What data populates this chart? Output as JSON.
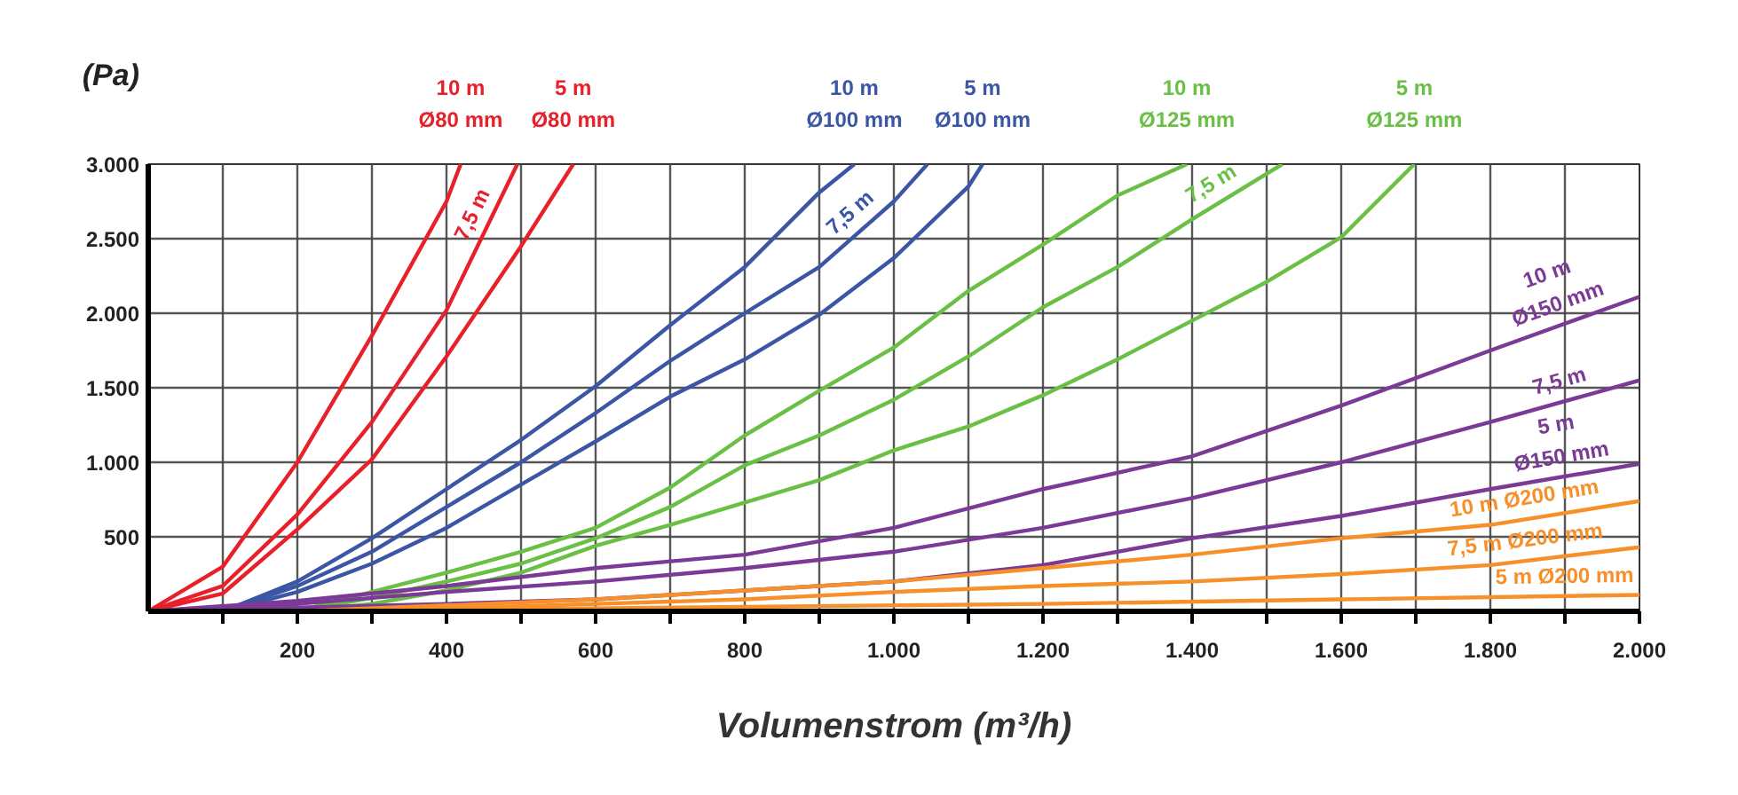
{
  "chart_data": {
    "type": "line",
    "xlabel": "Volumenstrom (m³/h)",
    "ylabel": "(Pa)",
    "xlim": [
      0,
      2000
    ],
    "ylim": [
      0,
      3000
    ],
    "xticks": [
      {
        "value": 100,
        "label": null
      },
      200,
      {
        "value": 300,
        "label": null
      },
      400,
      {
        "value": 500,
        "label": null
      },
      600,
      {
        "value": 700,
        "label": null
      },
      800,
      {
        "value": 900,
        "label": null
      },
      {
        "value": 1000,
        "label": "1.000"
      },
      {
        "value": 1100,
        "label": null
      },
      {
        "value": 1200,
        "label": "1.200"
      },
      {
        "value": 1300,
        "label": null
      },
      {
        "value": 1400,
        "label": "1.400"
      },
      {
        "value": 1500,
        "label": null
      },
      {
        "value": 1600,
        "label": "1.600"
      },
      {
        "value": 1700,
        "label": null
      },
      {
        "value": 1800,
        "label": "1.800"
      },
      {
        "value": 1900,
        "label": null
      },
      {
        "value": 2000,
        "label": "2.000"
      }
    ],
    "yticks": [
      500,
      {
        "value": 1000,
        "label": "1.000"
      },
      {
        "value": 1500,
        "label": "1.500"
      },
      {
        "value": 2000,
        "label": "2.000"
      },
      {
        "value": 2500,
        "label": "2.500"
      },
      {
        "value": 3000,
        "label": "3.000"
      }
    ],
    "grid": true,
    "marker": "none",
    "line_style": "solid",
    "series": [
      {
        "color": "#e8202a",
        "x": [
          0,
          100,
          200,
          300,
          400,
          419
        ],
        "values": [
          0,
          300,
          1000,
          1850,
          2750,
          3000
        ]
      },
      {
        "color": "#e8202a",
        "x": [
          0,
          100,
          200,
          300,
          400,
          495
        ],
        "values": [
          0,
          170,
          650,
          1270,
          2020,
          3000
        ]
      },
      {
        "color": "#e8202a",
        "x": [
          0,
          100,
          200,
          300,
          400,
          500,
          570
        ],
        "values": [
          0,
          120,
          550,
          1020,
          1710,
          2450,
          3000
        ]
      },
      {
        "color": "#3a56a5",
        "x": [
          100,
          200,
          300,
          400,
          500,
          600,
          700,
          800,
          900,
          947
        ],
        "values": [
          0,
          200,
          490,
          820,
          1150,
          1510,
          1920,
          2310,
          2810,
          3000
        ]
      },
      {
        "color": "#3a56a5",
        "x": [
          100,
          200,
          300,
          400,
          500,
          600,
          700,
          800,
          900,
          1000,
          1045
        ],
        "values": [
          0,
          170,
          400,
          700,
          1000,
          1330,
          1680,
          2000,
          2310,
          2750,
          3000
        ]
      },
      {
        "color": "#3a56a5",
        "x": [
          100,
          200,
          300,
          400,
          500,
          600,
          700,
          800,
          900,
          1000,
          1100,
          1119
        ],
        "values": [
          0,
          130,
          320,
          560,
          850,
          1140,
          1440,
          1690,
          1990,
          2370,
          2850,
          3000
        ]
      },
      {
        "color": "#6abf45",
        "x": [
          200,
          300,
          400,
          500,
          600,
          700,
          800,
          900,
          1000,
          1100,
          1200,
          1300,
          1393
        ],
        "values": [
          0,
          130,
          260,
          400,
          560,
          830,
          1180,
          1480,
          1770,
          2150,
          2460,
          2790,
          3000
        ]
      },
      {
        "color": "#6abf45",
        "x": [
          200,
          300,
          400,
          500,
          600,
          700,
          800,
          900,
          1000,
          1100,
          1200,
          1300,
          1400,
          1521
        ],
        "values": [
          0,
          90,
          200,
          320,
          490,
          700,
          980,
          1180,
          1420,
          1710,
          2040,
          2310,
          2630,
          3000
        ]
      },
      {
        "color": "#6abf45",
        "x": [
          200,
          300,
          400,
          500,
          600,
          700,
          800,
          900,
          1000,
          1100,
          1200,
          1300,
          1400,
          1500,
          1600,
          1698
        ],
        "values": [
          0,
          50,
          140,
          260,
          440,
          580,
          730,
          880,
          1080,
          1240,
          1450,
          1690,
          1950,
          2210,
          2510,
          3000
        ]
      },
      {
        "color": "#7a3a96",
        "x": [
          0,
          200,
          400,
          600,
          800,
          1000,
          1200,
          1400,
          1600,
          1800,
          2000
        ],
        "values": [
          0,
          70,
          170,
          290,
          380,
          560,
          820,
          1040,
          1380,
          1750,
          2110
        ]
      },
      {
        "color": "#7a3a96",
        "x": [
          0,
          200,
          400,
          600,
          800,
          1000,
          1200,
          1400,
          1600,
          1800,
          2000
        ],
        "values": [
          0,
          50,
          130,
          200,
          290,
          400,
          560,
          760,
          1000,
          1270,
          1550
        ]
      },
      {
        "color": "#7a3a96",
        "x": [
          0,
          400,
          600,
          800,
          1000,
          1200,
          1400,
          1600,
          1800,
          2000
        ],
        "values": [
          0,
          50,
          80,
          140,
          200,
          310,
          490,
          640,
          820,
          990
        ]
      },
      {
        "color": "#f7902a",
        "x": [
          200,
          400,
          600,
          800,
          1000,
          1200,
          1400,
          1600,
          1800,
          2000
        ],
        "values": [
          0,
          40,
          80,
          140,
          200,
          290,
          380,
          490,
          580,
          740
        ]
      },
      {
        "color": "#f7902a",
        "x": [
          200,
          400,
          600,
          800,
          1000,
          1200,
          1400,
          1600,
          1800,
          2000
        ],
        "values": [
          0,
          20,
          50,
          80,
          130,
          170,
          200,
          250,
          310,
          430
        ]
      },
      {
        "color": "#f7902a",
        "x": [
          200,
          400,
          800,
          1200,
          1600,
          2000
        ],
        "values": [
          0,
          10,
          30,
          50,
          80,
          110
        ]
      }
    ],
    "annotations": [
      {
        "text": "10 m\nØ80 mm",
        "x": 419,
        "y": 3000
      },
      {
        "text": "5 m\nØ80 mm",
        "x": 570,
        "y": 3000
      },
      {
        "text": "7,5 m",
        "x": 460,
        "y": 2600
      },
      {
        "text": "10 m\nØ100 mm",
        "x": 947,
        "y": 3000
      },
      {
        "text": "5 m\nØ100 mm",
        "x": 1119,
        "y": 3000
      },
      {
        "text": "7,5 m",
        "x": 960,
        "y": 2570
      },
      {
        "text": "10 m\nØ125 mm",
        "x": 1393,
        "y": 3000
      },
      {
        "text": "5 m\nØ125 mm",
        "x": 1698,
        "y": 3000
      },
      {
        "text": "7,5 m",
        "x": 1440,
        "y": 2750
      },
      {
        "text": "10 m\nØ150 mm",
        "x": 1900,
        "y": 1930
      },
      {
        "text": "7,5 m",
        "x": 1900,
        "y": 1410
      },
      {
        "text": "5 m\nØ150 mm",
        "x": 1900,
        "y": 900
      },
      {
        "text": "10 m Ø200 mm",
        "x": 1850,
        "y": 620
      },
      {
        "text": "7,5 m Ø200 mm",
        "x": 1850,
        "y": 340
      },
      {
        "text": "5 m Ø200 mm",
        "x": 1900,
        "y": 95
      }
    ]
  }
}
